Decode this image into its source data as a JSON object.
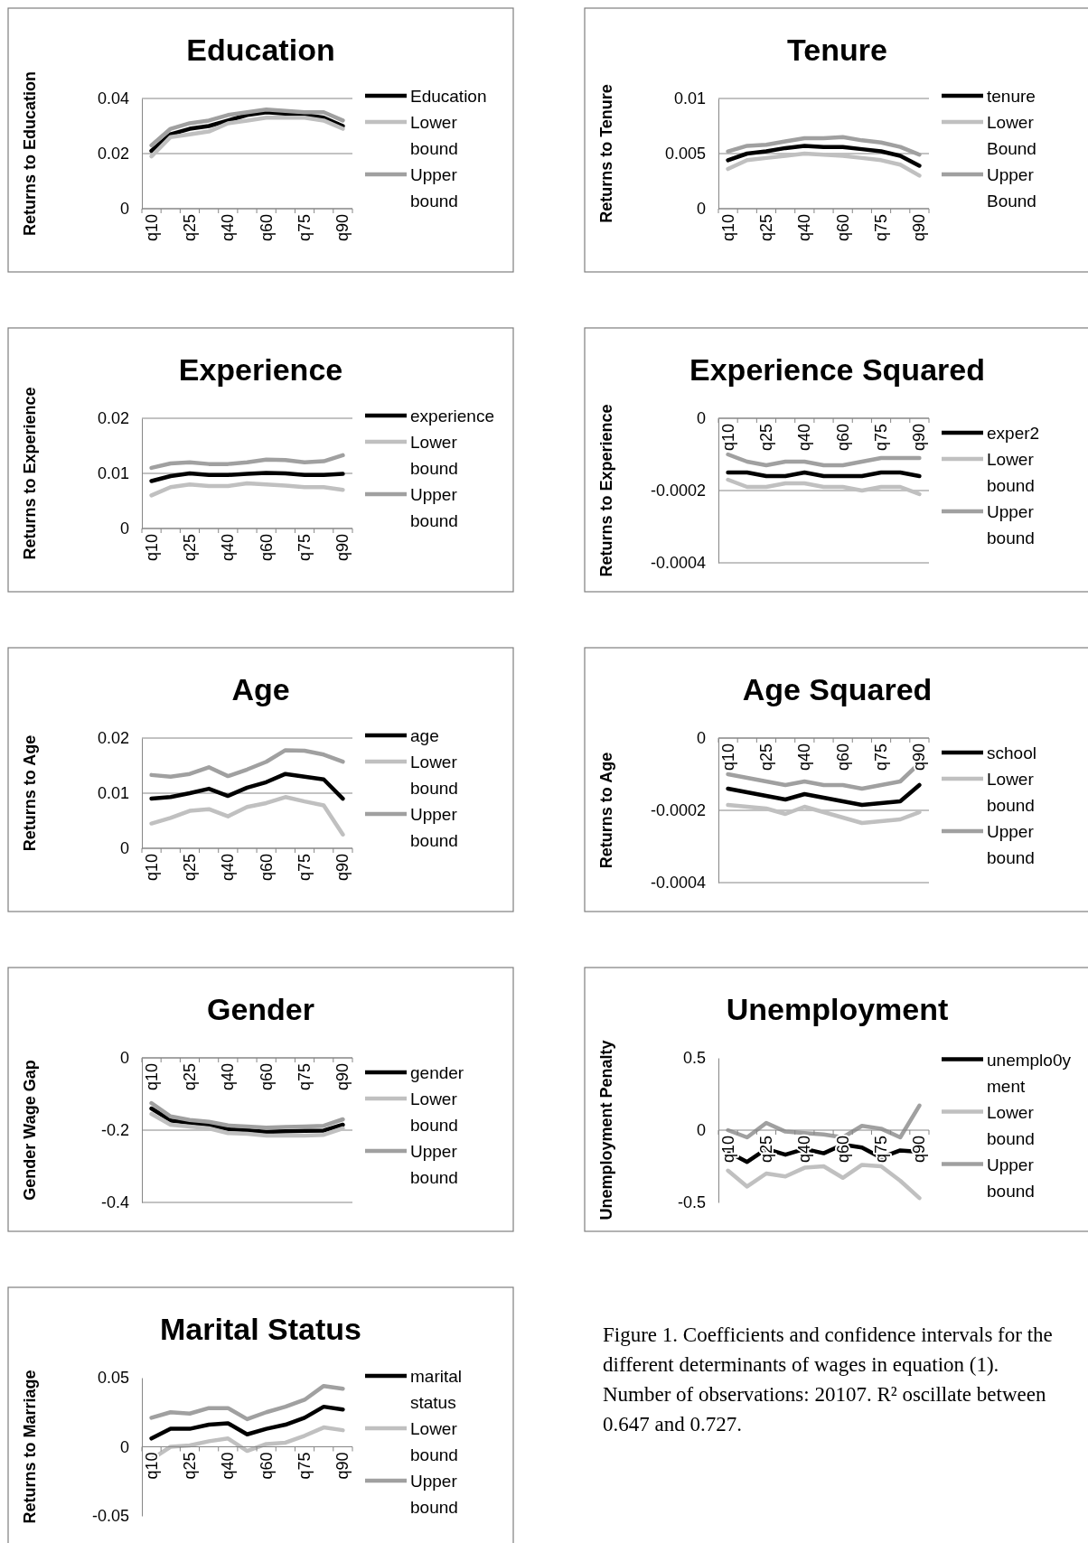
{
  "chart_data": [
    {
      "type": "line",
      "title": "Education",
      "ylabel": "Returns to Education",
      "categories": [
        "q10",
        null,
        "q25",
        null,
        "q40",
        null,
        "q60",
        null,
        "q75",
        null,
        "q90"
      ],
      "ylim": [
        0,
        0.04
      ],
      "yticks": [
        0,
        0.02,
        0.04
      ],
      "grid": "y",
      "legend": "right",
      "series": [
        {
          "name": "Education",
          "color": "#000000",
          "values": [
            0.021,
            0.027,
            0.029,
            0.03,
            0.032,
            0.034,
            0.035,
            0.0345,
            0.034,
            0.033,
            0.03
          ]
        },
        {
          "name": "Lower bound",
          "color": "#c0c0c0",
          "values": [
            0.019,
            0.026,
            0.027,
            0.028,
            0.031,
            0.032,
            0.033,
            0.033,
            0.033,
            0.032,
            0.029
          ]
        },
        {
          "name": "Upper bound",
          "color": "#a0a0a0",
          "values": [
            0.023,
            0.029,
            0.031,
            0.032,
            0.034,
            0.035,
            0.036,
            0.0355,
            0.035,
            0.035,
            0.032
          ]
        }
      ]
    },
    {
      "type": "line",
      "title": "Tenure",
      "ylabel": "Returns to Tenure",
      "categories": [
        "q10",
        null,
        "q25",
        null,
        "q40",
        null,
        "q60",
        null,
        "q75",
        null,
        "q90"
      ],
      "ylim": [
        0,
        0.01
      ],
      "yticks": [
        0,
        0.005,
        0.01
      ],
      "grid": "y",
      "legend": "right",
      "series": [
        {
          "name": "tenure",
          "color": "#000000",
          "values": [
            0.0044,
            0.005,
            0.0052,
            0.0055,
            0.0057,
            0.0056,
            0.0056,
            0.0054,
            0.0052,
            0.0048,
            0.0039
          ]
        },
        {
          "name": "Lower Bound",
          "color": "#c0c0c0",
          "values": [
            0.0036,
            0.0044,
            0.0046,
            0.0048,
            0.005,
            0.0049,
            0.0048,
            0.0046,
            0.0044,
            0.004,
            0.003
          ]
        },
        {
          "name": "Upper Bound",
          "color": "#a0a0a0",
          "values": [
            0.0052,
            0.0057,
            0.0058,
            0.0061,
            0.0064,
            0.0064,
            0.0065,
            0.0062,
            0.006,
            0.0056,
            0.0049
          ]
        }
      ]
    },
    {
      "type": "line",
      "title": "Experience",
      "ylabel": "Returns to Experience",
      "categories": [
        "q10",
        null,
        "q25",
        null,
        "q40",
        null,
        "q60",
        null,
        "q75",
        null,
        "q90"
      ],
      "ylim": [
        0,
        0.02
      ],
      "yticks": [
        0,
        0.01,
        0.02
      ],
      "grid": "y",
      "legend": "right",
      "series": [
        {
          "name": "experience",
          "color": "#000000",
          "values": [
            0.0086,
            0.0095,
            0.01,
            0.0097,
            0.0097,
            0.0099,
            0.0101,
            0.01,
            0.0097,
            0.0097,
            0.0099
          ]
        },
        {
          "name": "Lower bound",
          "color": "#c0c0c0",
          "values": [
            0.006,
            0.0075,
            0.008,
            0.0077,
            0.0077,
            0.0082,
            0.008,
            0.0078,
            0.0075,
            0.0075,
            0.007
          ]
        },
        {
          "name": "Upper bound",
          "color": "#a0a0a0",
          "values": [
            0.011,
            0.0118,
            0.012,
            0.0117,
            0.0117,
            0.012,
            0.0125,
            0.0124,
            0.012,
            0.0122,
            0.0133
          ]
        }
      ]
    },
    {
      "type": "line",
      "title": "Experience Squared",
      "ylabel": "Returns to Experience",
      "categories": [
        "q10",
        null,
        "q25",
        null,
        "q40",
        null,
        "q60",
        null,
        "q75",
        null,
        "q90"
      ],
      "ylim": [
        -0.0004,
        0
      ],
      "yticks": [
        -0.0004,
        -0.0002,
        0
      ],
      "grid": "y",
      "legend": "right",
      "series": [
        {
          "name": "exper2",
          "color": "#000000",
          "values": [
            -0.00015,
            -0.00015,
            -0.00016,
            -0.00016,
            -0.00015,
            -0.00016,
            -0.00016,
            -0.00016,
            -0.00015,
            -0.00015,
            -0.00016
          ]
        },
        {
          "name": "Lower bound",
          "color": "#c0c0c0",
          "values": [
            -0.00017,
            -0.00019,
            -0.00019,
            -0.00018,
            -0.00018,
            -0.00019,
            -0.00019,
            -0.0002,
            -0.00019,
            -0.00019,
            -0.00021
          ]
        },
        {
          "name": "Upper bound",
          "color": "#a0a0a0",
          "values": [
            -0.0001,
            -0.00012,
            -0.00013,
            -0.00012,
            -0.00012,
            -0.00013,
            -0.00013,
            -0.00012,
            -0.00011,
            -0.00011,
            -0.00011
          ]
        }
      ]
    },
    {
      "type": "line",
      "title": "Age",
      "ylabel": "Returns to Age",
      "categories": [
        "q10",
        null,
        "q25",
        null,
        "q40",
        null,
        "q60",
        null,
        "q75",
        null,
        "q90"
      ],
      "ylim": [
        0,
        0.02
      ],
      "yticks": [
        0,
        0.01,
        0.02
      ],
      "grid": "y",
      "legend": "right",
      "series": [
        {
          "name": "age",
          "color": "#000000",
          "values": [
            0.009,
            0.0093,
            0.01,
            0.0108,
            0.0095,
            0.011,
            0.012,
            0.0135,
            0.013,
            0.0125,
            0.009
          ]
        },
        {
          "name": "Lower bound",
          "color": "#c0c0c0",
          "values": [
            0.0045,
            0.0055,
            0.0068,
            0.0071,
            0.0058,
            0.0075,
            0.0082,
            0.0093,
            0.0085,
            0.0078,
            0.0025
          ]
        },
        {
          "name": "Upper bound",
          "color": "#a0a0a0",
          "values": [
            0.0133,
            0.013,
            0.0135,
            0.0147,
            0.0131,
            0.0143,
            0.0157,
            0.0178,
            0.0177,
            0.017,
            0.0157
          ]
        }
      ]
    },
    {
      "type": "line",
      "title": "Age Squared",
      "ylabel": "Returns to Age",
      "categories": [
        "q10",
        null,
        "q25",
        null,
        "q40",
        null,
        "q60",
        null,
        "q75",
        null,
        "q90"
      ],
      "ylim": [
        -0.0004,
        0
      ],
      "yticks": [
        -0.0004,
        -0.0002,
        0
      ],
      "grid": "y",
      "legend": "right",
      "series": [
        {
          "name": "school",
          "color": "#000000",
          "values": [
            -0.00014,
            -0.00015,
            -0.00016,
            -0.00017,
            -0.000155,
            -0.000165,
            -0.000175,
            -0.000185,
            -0.00018,
            -0.000175,
            -0.00013
          ]
        },
        {
          "name": "Lower bound",
          "color": "#c0c0c0",
          "values": [
            -0.000185,
            -0.00019,
            -0.000195,
            -0.00021,
            -0.00019,
            -0.000205,
            -0.00022,
            -0.000235,
            -0.00023,
            -0.000225,
            -0.000205
          ]
        },
        {
          "name": "Upper bound",
          "color": "#a0a0a0",
          "values": [
            -0.0001,
            -0.00011,
            -0.00012,
            -0.00013,
            -0.00012,
            -0.00013,
            -0.00013,
            -0.00014,
            -0.00013,
            -0.00012,
            -7e-05
          ]
        }
      ]
    },
    {
      "type": "line",
      "title": "Gender",
      "ylabel": "Gender Wage Gap",
      "categories": [
        "q10",
        null,
        "q25",
        null,
        "q40",
        null,
        "q60",
        null,
        "q75",
        null,
        "q90"
      ],
      "ylim": [
        -0.4,
        0
      ],
      "yticks": [
        -0.4,
        -0.2,
        0
      ],
      "grid": "y",
      "legend": "right",
      "series": [
        {
          "name": "gender",
          "color": "#000000",
          "values": [
            -0.14,
            -0.173,
            -0.18,
            -0.185,
            -0.197,
            -0.2,
            -0.205,
            -0.203,
            -0.202,
            -0.201,
            -0.185
          ]
        },
        {
          "name": "Lower bound",
          "color": "#c0c0c0",
          "values": [
            -0.155,
            -0.185,
            -0.19,
            -0.195,
            -0.208,
            -0.21,
            -0.215,
            -0.215,
            -0.215,
            -0.213,
            -0.195
          ]
        },
        {
          "name": "Upper bound",
          "color": "#a0a0a0",
          "values": [
            -0.125,
            -0.162,
            -0.172,
            -0.177,
            -0.187,
            -0.19,
            -0.193,
            -0.191,
            -0.19,
            -0.188,
            -0.17
          ]
        }
      ]
    },
    {
      "type": "line",
      "title": "Unemployment",
      "ylabel": "Unemployment Penalty",
      "categories": [
        "q10",
        null,
        "q25",
        null,
        "q40",
        null,
        "q60",
        null,
        "q75",
        null,
        "q90"
      ],
      "ylim": [
        -0.5,
        0.5
      ],
      "yticks": [
        -0.5,
        0,
        0.5
      ],
      "grid": false,
      "legend": "right",
      "series": [
        {
          "name": "unemplo0yment",
          "color": "#000000",
          "values": [
            -0.15,
            -0.22,
            -0.13,
            -0.17,
            -0.13,
            -0.16,
            -0.1,
            -0.12,
            -0.19,
            -0.14,
            -0.15
          ]
        },
        {
          "name": "Lower bound",
          "color": "#c0c0c0",
          "values": [
            -0.28,
            -0.39,
            -0.3,
            -0.32,
            -0.26,
            -0.25,
            -0.33,
            -0.24,
            -0.25,
            -0.35,
            -0.47
          ]
        },
        {
          "name": "Upper bound",
          "color": "#a0a0a0",
          "values": [
            0,
            -0.05,
            0.05,
            -0.01,
            -0.02,
            -0.03,
            -0.05,
            0.03,
            0.01,
            -0.05,
            0.17
          ]
        }
      ]
    },
    {
      "type": "line",
      "title": "Marital Status",
      "ylabel": "Returns to Marriage",
      "categories": [
        "q10",
        null,
        "q25",
        null,
        "q40",
        null,
        "q60",
        null,
        "q75",
        null,
        "q90"
      ],
      "ylim": [
        -0.05,
        0.05
      ],
      "yticks": [
        -0.05,
        0,
        0.05
      ],
      "grid": false,
      "legend": "right",
      "series": [
        {
          "name": "marital status",
          "color": "#000000",
          "values": [
            0.006,
            0.013,
            0.013,
            0.016,
            0.017,
            0.009,
            0.013,
            0.016,
            0.021,
            0.029,
            0.027
          ]
        },
        {
          "name": "Lower bound",
          "color": "#c0c0c0",
          "values": [
            -0.009,
            0,
            0.001,
            0.004,
            0.006,
            -0.003,
            0.002,
            0.003,
            0.008,
            0.014,
            0.012
          ]
        },
        {
          "name": "Upper bound",
          "color": "#a0a0a0",
          "values": [
            0.021,
            0.025,
            0.024,
            0.028,
            0.028,
            0.02,
            0.025,
            0.029,
            0.034,
            0.044,
            0.042
          ]
        }
      ]
    },
    {
      "type": "other",
      "annotations": [
        "Figure 1. Coefficients and confidence intervals for the different determinants of wages in equation (1). Number of observations: 20107. R² oscillate between 0.647 and 0.727."
      ]
    }
  ]
}
